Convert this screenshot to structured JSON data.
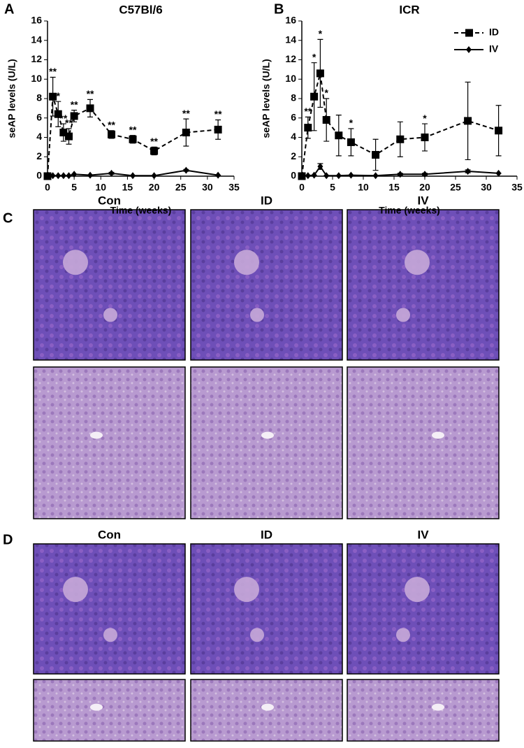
{
  "chart_data": [
    {
      "type": "line",
      "panel": "A",
      "title": "C57Bl/6",
      "xlabel": "Time (weeks)",
      "ylabel": "seAP levels (U/L)",
      "xlim": [
        0,
        35
      ],
      "xticks": [
        0,
        5,
        10,
        15,
        20,
        25,
        30,
        35
      ],
      "ylim": [
        0,
        16
      ],
      "yticks": [
        0,
        2,
        4,
        6,
        8,
        10,
        12,
        14,
        16
      ],
      "series": [
        {
          "name": "ID",
          "color": "#000000",
          "style": "dashed",
          "marker": "square",
          "x": [
            0,
            1,
            2,
            3,
            4,
            5,
            8,
            12,
            16,
            20,
            26,
            32
          ],
          "values": [
            0,
            8.2,
            6.4,
            4.5,
            4.1,
            6.2,
            7.0,
            4.3,
            3.8,
            2.6,
            4.5,
            4.8
          ],
          "errors": [
            0,
            2.0,
            1.3,
            0.9,
            0.8,
            0.6,
            0.9,
            0.4,
            0.4,
            0.4,
            1.4,
            1.0
          ],
          "significance": [
            null,
            "**",
            "*",
            "**",
            "**",
            "**",
            "**",
            "**",
            "**",
            "**",
            "**",
            "**"
          ]
        },
        {
          "name": "IV",
          "color": "#000000",
          "style": "solid",
          "marker": "diamond",
          "x": [
            0,
            1,
            2,
            3,
            4,
            5,
            8,
            12,
            16,
            20,
            26,
            32
          ],
          "values": [
            0.05,
            0.05,
            0.05,
            0.05,
            0.05,
            0.2,
            0.1,
            0.3,
            0.05,
            0.05,
            0.6,
            0.1
          ],
          "errors": [
            0,
            0,
            0,
            0,
            0,
            0,
            0,
            0.1,
            0,
            0,
            0.1,
            0
          ]
        }
      ]
    },
    {
      "type": "line",
      "panel": "B",
      "title": "ICR",
      "xlabel": "Time (weeks)",
      "ylabel": "seAP levels (U/L)",
      "xlim": [
        0,
        35
      ],
      "xticks": [
        0,
        5,
        10,
        15,
        20,
        25,
        30,
        35
      ],
      "ylim": [
        0,
        16
      ],
      "yticks": [
        0,
        2,
        4,
        6,
        8,
        10,
        12,
        14,
        16
      ],
      "legend": "upper right",
      "series": [
        {
          "name": "ID",
          "color": "#000000",
          "style": "dashed",
          "marker": "square",
          "x": [
            0,
            1,
            2,
            3,
            4,
            6,
            8,
            12,
            16,
            20,
            27,
            32
          ],
          "values": [
            0,
            5.0,
            8.2,
            10.6,
            5.8,
            4.2,
            3.5,
            2.2,
            3.8,
            4.0,
            5.7,
            4.7
          ],
          "errors": [
            0,
            1.1,
            3.5,
            3.5,
            2.2,
            2.1,
            1.4,
            1.6,
            1.8,
            1.4,
            4.0,
            2.6
          ],
          "significance": [
            null,
            "**",
            "*",
            "*",
            "*",
            null,
            "*",
            null,
            null,
            "*",
            null,
            null
          ]
        },
        {
          "name": "IV",
          "color": "#000000",
          "style": "solid",
          "marker": "diamond",
          "x": [
            0,
            1,
            2,
            3,
            4,
            6,
            8,
            12,
            16,
            20,
            27,
            32
          ],
          "values": [
            0.05,
            0.05,
            0.1,
            1.0,
            0.05,
            0.05,
            0.1,
            0.05,
            0.2,
            0.2,
            0.5,
            0.3
          ],
          "errors": [
            0,
            0,
            0,
            0.3,
            0,
            0,
            0,
            0,
            0.1,
            0.1,
            0.15,
            0
          ]
        }
      ]
    }
  ],
  "panels": [
    {
      "label": "C",
      "columns": [
        "Con",
        "ID",
        "IV"
      ]
    },
    {
      "label": "D",
      "columns": [
        "Con",
        "ID",
        "IV"
      ]
    }
  ]
}
